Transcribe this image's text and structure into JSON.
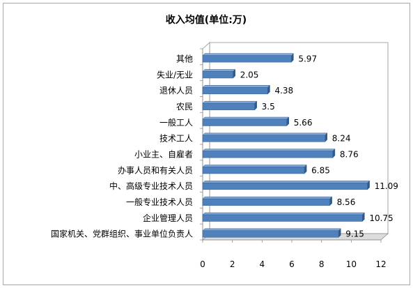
{
  "chart_data": {
    "type": "bar",
    "orientation": "horizontal",
    "title": "收入均值(单位:万)",
    "xlabel": "",
    "ylabel": "",
    "xlim": [
      0,
      12
    ],
    "ticks": [
      "0",
      "2",
      "4",
      "6",
      "8",
      "10",
      "12"
    ],
    "grid": false,
    "legend": "none",
    "bar_color": "#4f81bd",
    "categories": [
      "其他",
      "失业/无业",
      "退休人员",
      "农民",
      "一般工人",
      "技术工人",
      "小业主、自雇者",
      "办事人员和有关人员",
      "中、高级专业技术人员",
      "一般专业技术人员",
      "企业管理人员",
      "国家机关、党群组织、事业单位负责人"
    ],
    "values": [
      5.97,
      2.05,
      4.38,
      3.5,
      5.66,
      8.24,
      8.76,
      6.85,
      11.09,
      8.56,
      10.75,
      9.15
    ],
    "value_labels": [
      "5.97",
      "2.05",
      "4.38",
      "3.5",
      "5.66",
      "8.24",
      "8.76",
      "6.85",
      "11.09",
      "8.56",
      "10.75",
      "9.15"
    ]
  }
}
